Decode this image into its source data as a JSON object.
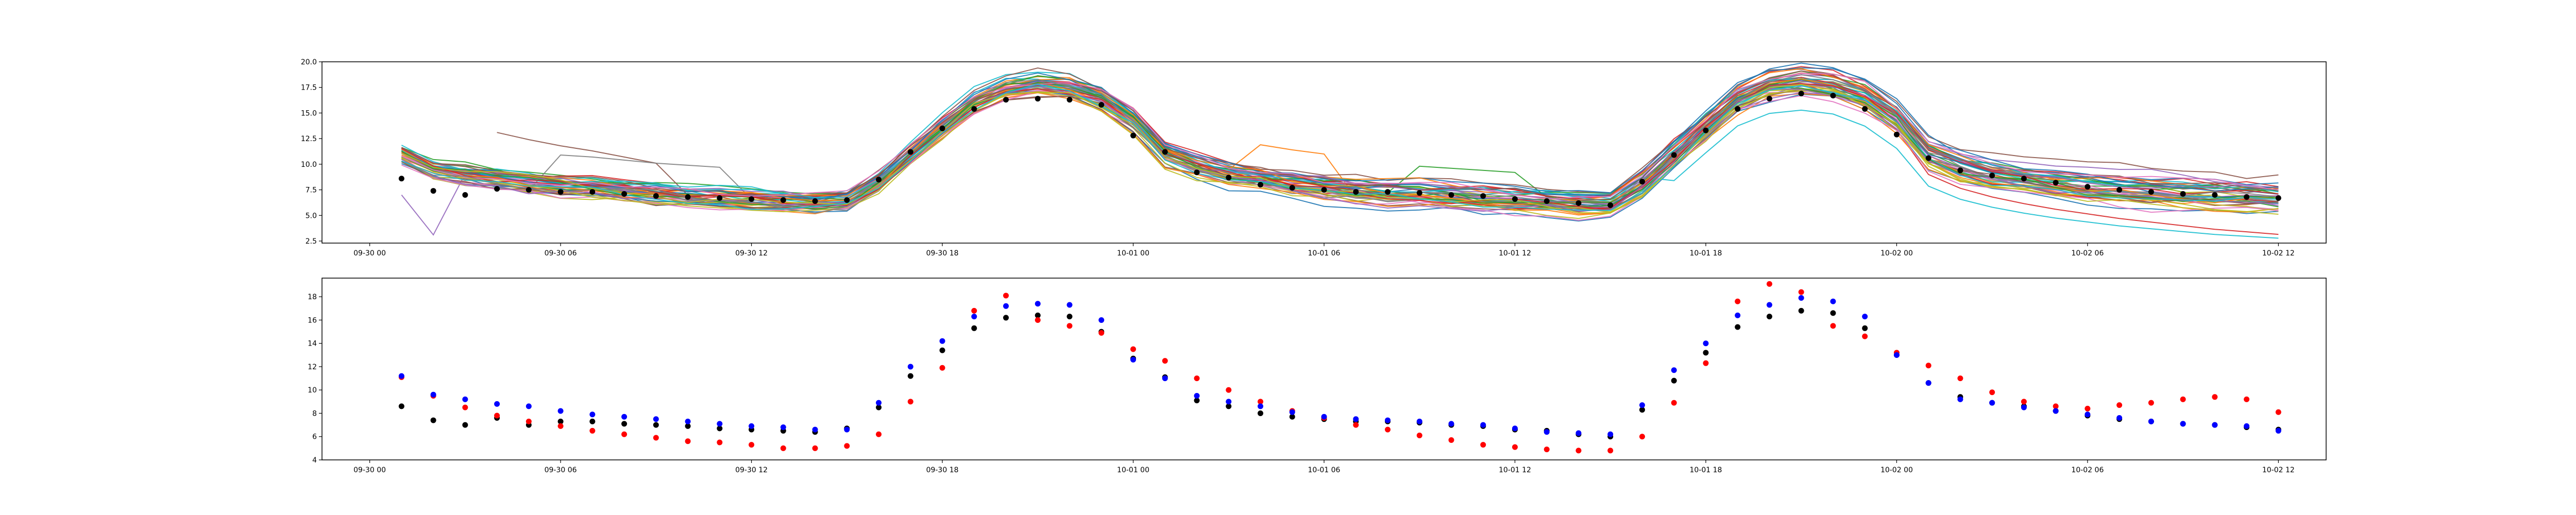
{
  "figure": {
    "background": "#ffffff"
  },
  "chart_data": [
    {
      "type": "line",
      "title": "",
      "xlabel": "",
      "ylabel": "",
      "x_start": "2023-09-30 00:00",
      "x_step_hours": 1,
      "xlim": [
        "2023-09-29 22:30",
        "2023-10-02 13:30"
      ],
      "ylim": [
        2.3,
        20.0
      ],
      "grid": false,
      "legend": "none",
      "x_ticks": [
        {
          "at": "2023-09-30 00:00",
          "label": "09-30 00"
        },
        {
          "at": "2023-09-30 06:00",
          "label": "09-30 06"
        },
        {
          "at": "2023-09-30 12:00",
          "label": "09-30 12"
        },
        {
          "at": "2023-09-30 18:00",
          "label": "09-30 18"
        },
        {
          "at": "2023-10-01 00:00",
          "label": "10-01 00"
        },
        {
          "at": "2023-10-01 06:00",
          "label": "10-01 06"
        },
        {
          "at": "2023-10-01 12:00",
          "label": "10-01 12"
        },
        {
          "at": "2023-10-01 18:00",
          "label": "10-01 18"
        },
        {
          "at": "2023-10-02 00:00",
          "label": "10-02 00"
        },
        {
          "at": "2023-10-02 06:00",
          "label": "10-02 06"
        },
        {
          "at": "2023-10-02 12:00",
          "label": "10-02 12"
        }
      ],
      "y_ticks": [
        {
          "value": 2.5,
          "label": "2.5"
        },
        {
          "value": 5.0,
          "label": "5.0"
        },
        {
          "value": 7.5,
          "label": "7.5"
        },
        {
          "value": 10.0,
          "label": "10.0"
        },
        {
          "value": 12.5,
          "label": "12.5"
        },
        {
          "value": 15.0,
          "label": "15.0"
        },
        {
          "value": 17.5,
          "label": "17.5"
        },
        {
          "value": 20.0,
          "label": "20.0"
        }
      ],
      "ensemble_members": 50,
      "ensemble_colors": [
        "#1f77b4",
        "#ff7f0e",
        "#2ca02c",
        "#d62728",
        "#9467bd",
        "#8c564b",
        "#e377c2",
        "#7f7f7f",
        "#bcbd22",
        "#17becf"
      ],
      "ensemble_x_hours": [
        1,
        2,
        3,
        4,
        5,
        6,
        7,
        8,
        9,
        10,
        11,
        12,
        13,
        14,
        15,
        16,
        17,
        18,
        19,
        20,
        21,
        22,
        23,
        24,
        25,
        26,
        27,
        28,
        29,
        30,
        31,
        32,
        33,
        34,
        35,
        36,
        37,
        38,
        39,
        40,
        41,
        42,
        43,
        44,
        45,
        46,
        47,
        48,
        49,
        50,
        51,
        52,
        53,
        54,
        55,
        56,
        57,
        58,
        59,
        60
      ],
      "ensemble_mean": [
        11.0,
        9.4,
        8.9,
        8.6,
        8.2,
        7.9,
        7.7,
        7.4,
        7.1,
        6.9,
        6.7,
        6.6,
        6.4,
        6.3,
        6.5,
        8.3,
        11.0,
        13.6,
        16.1,
        17.4,
        17.9,
        17.6,
        16.5,
        14.4,
        11.2,
        10.0,
        9.2,
        8.7,
        8.2,
        7.8,
        7.5,
        7.3,
        7.2,
        7.0,
        6.8,
        6.6,
        6.4,
        6.2,
        6.1,
        8.0,
        10.9,
        13.7,
        16.4,
        17.7,
        18.1,
        17.8,
        16.7,
        14.6,
        11.0,
        9.8,
        9.1,
        8.6,
        8.2,
        7.9,
        7.6,
        7.4,
        7.2,
        7.0,
        6.9,
        6.8
      ],
      "observed_points": {
        "color": "#000000",
        "x_hours": [
          1,
          2,
          3,
          4,
          5,
          6,
          7,
          8,
          9,
          10,
          11,
          12,
          13,
          14,
          15,
          16,
          17,
          18,
          19,
          20,
          21,
          22,
          23,
          24,
          25,
          26,
          27,
          28,
          29,
          30,
          31,
          32,
          33,
          34,
          35,
          36,
          37,
          38,
          39,
          40,
          41,
          42,
          43,
          44,
          45,
          46,
          47,
          48,
          49,
          50,
          51,
          52,
          53,
          54,
          55,
          56,
          57,
          58,
          59,
          60
        ],
        "values": [
          8.6,
          7.4,
          7.0,
          7.6,
          7.5,
          7.3,
          7.3,
          7.1,
          6.9,
          6.8,
          6.7,
          6.6,
          6.5,
          6.4,
          6.5,
          8.5,
          11.2,
          13.5,
          15.4,
          16.3,
          16.4,
          16.3,
          15.8,
          12.8,
          11.2,
          9.2,
          8.7,
          8.0,
          7.7,
          7.5,
          7.3,
          7.3,
          7.2,
          7.0,
          6.9,
          6.6,
          6.4,
          6.2,
          6.0,
          8.3,
          10.9,
          13.3,
          15.4,
          16.4,
          16.9,
          16.7,
          15.4,
          12.9,
          10.6,
          9.4,
          8.9,
          8.6,
          8.2,
          7.8,
          7.5,
          7.3,
          7.1,
          7.0,
          6.8,
          6.7
        ]
      }
    },
    {
      "type": "scatter",
      "title": "",
      "xlabel": "",
      "ylabel": "",
      "x_start": "2023-09-30 00:00",
      "x_step_hours": 1,
      "xlim": [
        "2023-09-29 22:30",
        "2023-10-02 13:30"
      ],
      "ylim": [
        4.0,
        19.6
      ],
      "grid": false,
      "legend": "none",
      "x_ticks": [
        {
          "at": "2023-09-30 00:00",
          "label": "09-30 00"
        },
        {
          "at": "2023-09-30 06:00",
          "label": "09-30 06"
        },
        {
          "at": "2023-09-30 12:00",
          "label": "09-30 12"
        },
        {
          "at": "2023-09-30 18:00",
          "label": "09-30 18"
        },
        {
          "at": "2023-10-01 00:00",
          "label": "10-01 00"
        },
        {
          "at": "2023-10-01 06:00",
          "label": "10-01 06"
        },
        {
          "at": "2023-10-01 12:00",
          "label": "10-01 12"
        },
        {
          "at": "2023-10-01 18:00",
          "label": "10-01 18"
        },
        {
          "at": "2023-10-02 00:00",
          "label": "10-02 00"
        },
        {
          "at": "2023-10-02 06:00",
          "label": "10-02 06"
        },
        {
          "at": "2023-10-02 12:00",
          "label": "10-02 12"
        }
      ],
      "y_ticks": [
        {
          "value": 4,
          "label": "4"
        },
        {
          "value": 6,
          "label": "6"
        },
        {
          "value": 8,
          "label": "8"
        },
        {
          "value": 10,
          "label": "10"
        },
        {
          "value": 12,
          "label": "12"
        },
        {
          "value": 14,
          "label": "14"
        },
        {
          "value": 16,
          "label": "16"
        },
        {
          "value": 18,
          "label": "18"
        }
      ],
      "series": [
        {
          "color": "#000000",
          "x_hours": [
            1,
            2,
            3,
            4,
            5,
            6,
            7,
            8,
            9,
            10,
            11,
            12,
            13,
            14,
            15,
            16,
            17,
            18,
            19,
            20,
            21,
            22,
            23,
            24,
            25,
            26,
            27,
            28,
            29,
            30,
            31,
            32,
            33,
            34,
            35,
            36,
            37,
            38,
            39,
            40,
            41,
            42,
            43,
            44,
            45,
            46,
            47,
            48,
            49,
            50,
            51,
            52,
            53,
            54,
            55,
            56,
            57,
            58,
            59,
            60
          ],
          "values": [
            8.6,
            7.4,
            7.0,
            7.6,
            7.0,
            7.3,
            7.3,
            7.1,
            7.0,
            6.9,
            6.7,
            6.6,
            6.5,
            6.4,
            6.7,
            8.5,
            11.2,
            13.4,
            15.3,
            16.2,
            16.4,
            16.3,
            15.0,
            12.7,
            11.1,
            9.1,
            8.6,
            8.0,
            7.7,
            7.5,
            7.3,
            7.3,
            7.2,
            7.0,
            6.9,
            6.6,
            6.5,
            6.2,
            6.0,
            8.3,
            10.8,
            13.2,
            15.4,
            16.3,
            16.8,
            16.6,
            15.3,
            13.0,
            10.6,
            9.4,
            8.9,
            8.6,
            8.2,
            7.8,
            7.5,
            7.3,
            7.1,
            7.0,
            6.8,
            6.6
          ]
        },
        {
          "color": "#ff0000",
          "x_hours": [
            1,
            2,
            3,
            4,
            5,
            6,
            7,
            8,
            9,
            10,
            11,
            12,
            13,
            14,
            15,
            16,
            17,
            18,
            19,
            20,
            21,
            22,
            23,
            24,
            25,
            26,
            27,
            28,
            29,
            30,
            31,
            32,
            33,
            34,
            35,
            36,
            37,
            38,
            39,
            40,
            41,
            42,
            43,
            44,
            45,
            46,
            47,
            48,
            49,
            50,
            51,
            52,
            53,
            54,
            55,
            56,
            57,
            58,
            59,
            60
          ],
          "values": [
            11.1,
            9.5,
            8.5,
            7.8,
            7.3,
            6.9,
            6.5,
            6.2,
            5.9,
            5.6,
            5.5,
            5.3,
            5.0,
            5.0,
            5.2,
            6.2,
            9.0,
            11.9,
            16.8,
            18.1,
            16.0,
            15.5,
            14.9,
            13.5,
            12.5,
            11.0,
            10.0,
            9.0,
            8.2,
            7.6,
            7.0,
            6.6,
            6.1,
            5.7,
            5.3,
            5.1,
            4.9,
            4.8,
            4.8,
            6.0,
            8.9,
            12.3,
            17.6,
            19.1,
            18.4,
            15.5,
            14.6,
            13.2,
            12.1,
            11.0,
            9.8,
            9.0,
            8.6,
            8.4,
            8.7,
            8.9,
            9.2,
            9.4,
            9.2,
            8.1
          ]
        },
        {
          "color": "#0000ff",
          "x_hours": [
            1,
            2,
            3,
            4,
            5,
            6,
            7,
            8,
            9,
            10,
            11,
            12,
            13,
            14,
            15,
            16,
            17,
            18,
            19,
            20,
            21,
            22,
            23,
            24,
            25,
            26,
            27,
            28,
            29,
            30,
            31,
            32,
            33,
            34,
            35,
            36,
            37,
            38,
            39,
            40,
            41,
            42,
            43,
            44,
            45,
            46,
            47,
            48,
            49,
            50,
            51,
            52,
            53,
            54,
            55,
            56,
            57,
            58,
            59,
            60
          ],
          "values": [
            11.2,
            9.6,
            9.2,
            8.8,
            8.6,
            8.2,
            7.9,
            7.7,
            7.5,
            7.3,
            7.1,
            6.9,
            6.8,
            6.6,
            6.6,
            8.9,
            12.0,
            14.2,
            16.3,
            17.2,
            17.4,
            17.3,
            16.0,
            12.6,
            11.0,
            9.5,
            9.0,
            8.6,
            8.1,
            7.7,
            7.5,
            7.4,
            7.3,
            7.1,
            7.0,
            6.7,
            6.4,
            6.3,
            6.2,
            8.7,
            11.7,
            14.0,
            16.4,
            17.3,
            17.9,
            17.6,
            16.3,
            13.0,
            10.6,
            9.2,
            8.9,
            8.5,
            8.2,
            7.9,
            7.6,
            7.3,
            7.1,
            7.0,
            6.9,
            6.5
          ]
        }
      ]
    }
  ]
}
